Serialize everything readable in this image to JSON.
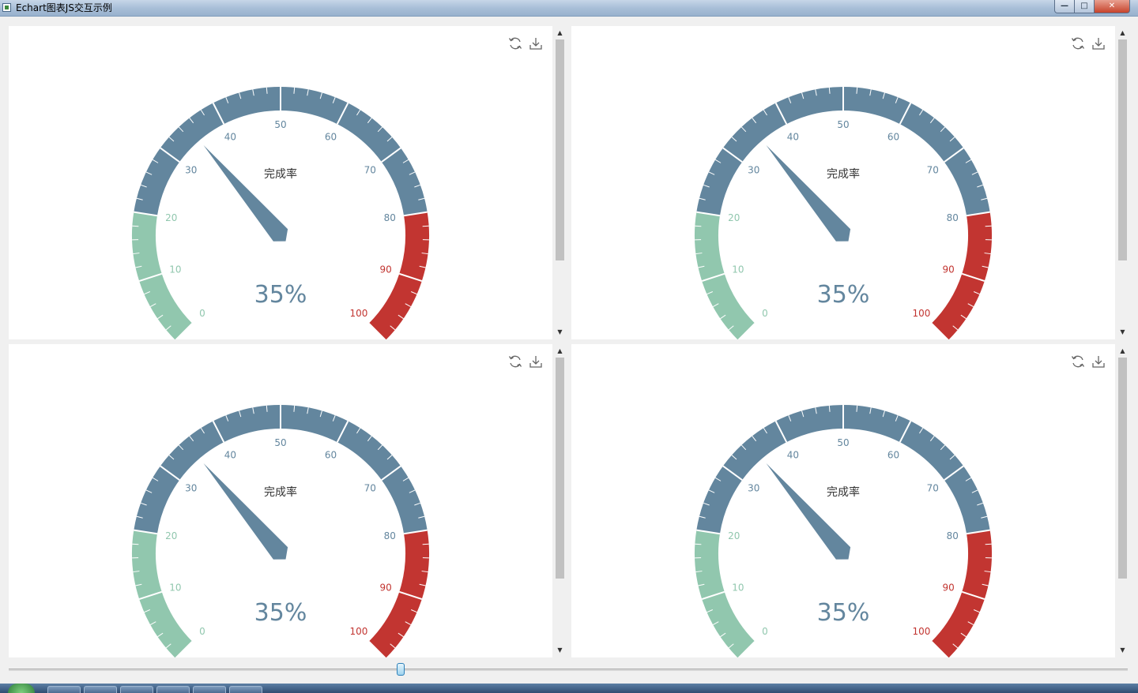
{
  "window": {
    "title": "Echart图表JS交互示例",
    "buttons": {
      "minimize": "—",
      "maximize": "□",
      "close": "✕"
    }
  },
  "gauge": {
    "title": "完成率",
    "value": 35,
    "detail": "35%",
    "min": 0,
    "max": 100,
    "tick_labels": [
      "0",
      "10",
      "20",
      "30",
      "40",
      "50",
      "60",
      "70",
      "80",
      "90",
      "100"
    ],
    "color_bands": [
      {
        "upto": 0.2,
        "color": "#91c7ae"
      },
      {
        "upto": 0.8,
        "color": "#63869e"
      },
      {
        "upto": 1.0,
        "color": "#c23531"
      }
    ],
    "pointer_color": "#63869e",
    "title_color": "#333333"
  },
  "toolbox": {
    "restore_icon": "refresh-icon",
    "save_icon": "download-icon"
  },
  "charts": [
    {
      "id": "chart-1"
    },
    {
      "id": "chart-2"
    },
    {
      "id": "chart-3"
    },
    {
      "id": "chart-4"
    }
  ],
  "slider": {
    "value": 0.35
  }
}
